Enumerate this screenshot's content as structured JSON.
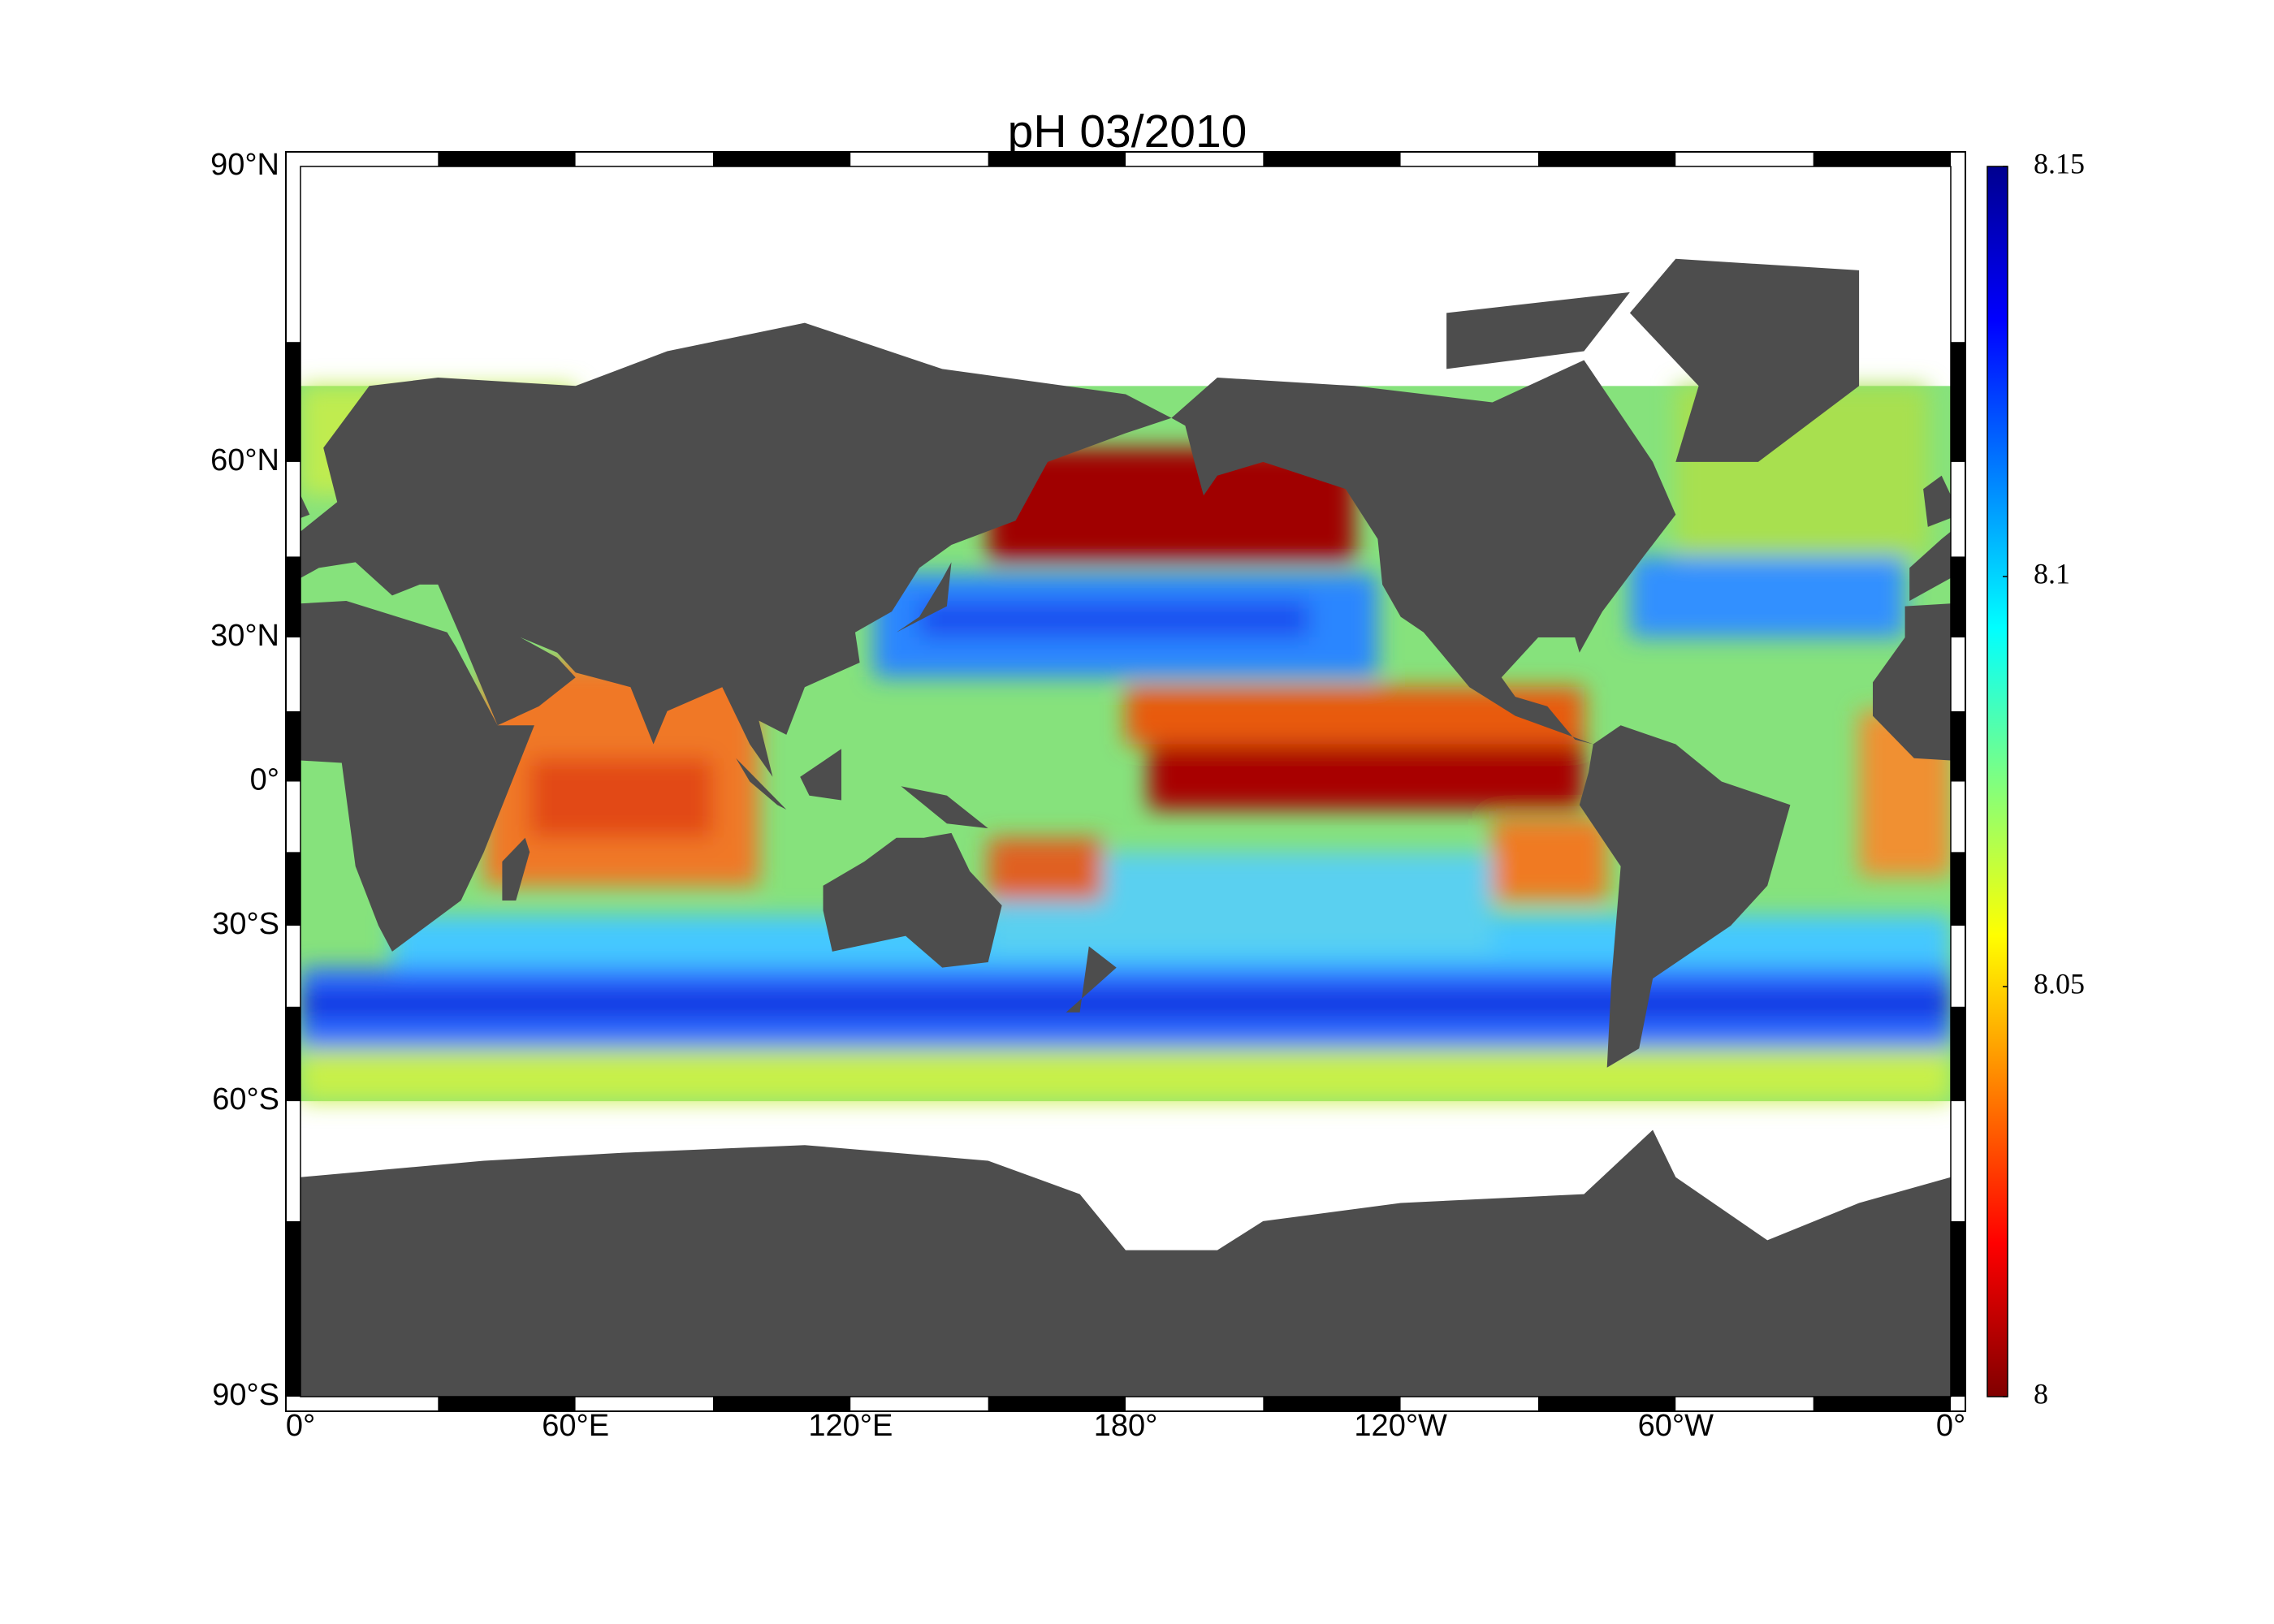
{
  "map": {
    "title": "pH  03/2010",
    "lat_ticks": [
      {
        "value": 90,
        "label": "90°N"
      },
      {
        "value": 60,
        "label": "60°N"
      },
      {
        "value": 30,
        "label": "30°N"
      },
      {
        "value": 0,
        "label": "0°"
      },
      {
        "value": -30,
        "label": "30°S"
      },
      {
        "value": -60,
        "label": "60°S"
      },
      {
        "value": -90,
        "label": "90°S"
      }
    ],
    "lon_ticks": [
      {
        "value": 0,
        "label": "0°"
      },
      {
        "value": 60,
        "label": "60°E"
      },
      {
        "value": 120,
        "label": "120°E"
      },
      {
        "value": 180,
        "label": "180°"
      },
      {
        "value": 240,
        "label": "120°W"
      },
      {
        "value": 300,
        "label": "60°W"
      },
      {
        "value": 360,
        "label": "0°"
      }
    ],
    "colorbar": {
      "lim": [
        8,
        8.15
      ],
      "ticks": [
        8,
        8.05,
        8.1,
        8.15
      ]
    }
  }
}
